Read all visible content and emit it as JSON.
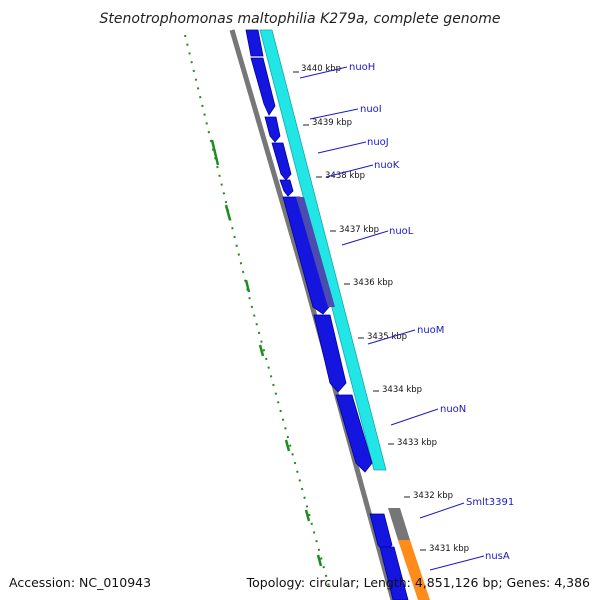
{
  "title": "Stenotrophomonas maltophilia K279a, complete genome",
  "accession": "Accession: NC_010943",
  "stats": "Topology: circular; Length: 4,851,126 bp; Genes: 4,386",
  "colors": {
    "cds_forward": "#1515e0",
    "cds_dark": "#4b4bb0",
    "cog_cyan": "#22e6e6",
    "cog_gray": "#767676",
    "cog_orange": "#ff8c1a",
    "backbone": "#777777",
    "gc_skew": "#1e8c1e",
    "label": "#1a1ac8"
  },
  "ticks": [
    {
      "label": "3440 kbp",
      "kbp": 3440
    },
    {
      "label": "3439 kbp",
      "kbp": 3439
    },
    {
      "label": "3438 kbp",
      "kbp": 3438
    },
    {
      "label": "3437 kbp",
      "kbp": 3437
    },
    {
      "label": "3436 kbp",
      "kbp": 3436
    },
    {
      "label": "3435 kbp",
      "kbp": 3435
    },
    {
      "label": "3434 kbp",
      "kbp": 3434
    },
    {
      "label": "3433 kbp",
      "kbp": 3433
    },
    {
      "label": "3432 kbp",
      "kbp": 3432
    },
    {
      "label": "3431 kbp",
      "kbp": 3431
    }
  ],
  "genes": [
    {
      "name": "nuoH"
    },
    {
      "name": "nuoI"
    },
    {
      "name": "nuoJ"
    },
    {
      "name": "nuoK"
    },
    {
      "name": "nuoL"
    },
    {
      "name": "nuoM"
    },
    {
      "name": "nuoN"
    },
    {
      "name": "Smlt3391"
    },
    {
      "name": "nusA"
    }
  ]
}
